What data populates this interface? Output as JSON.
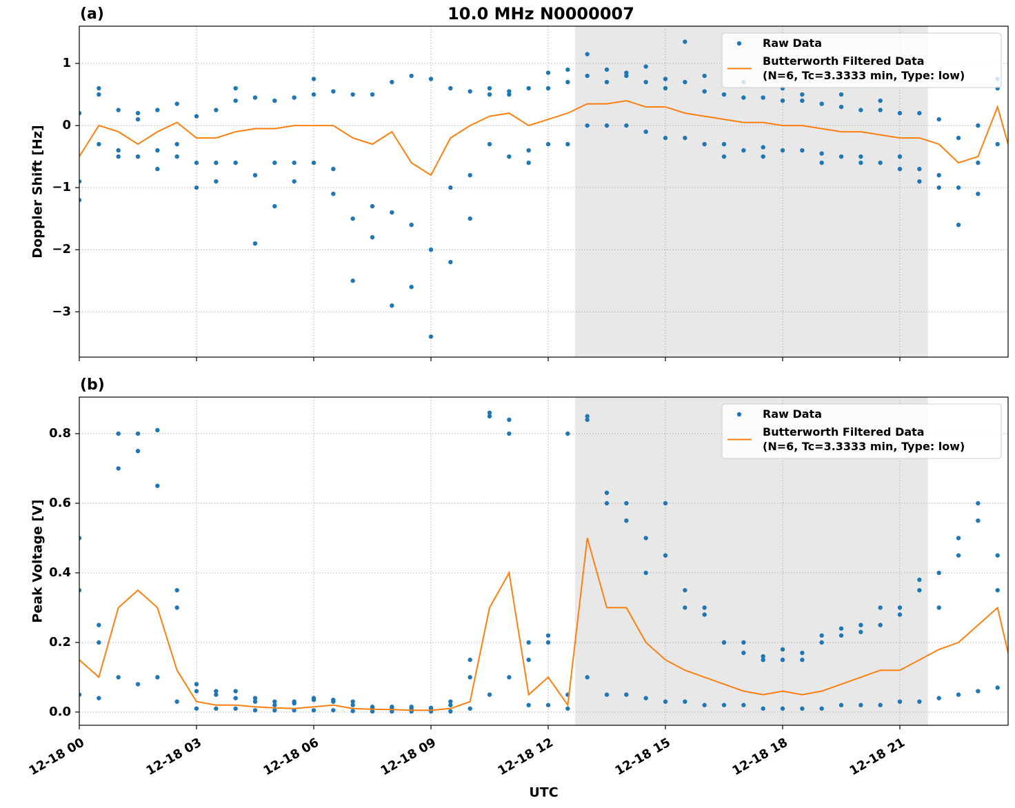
{
  "chart_data": [
    {
      "type": "line",
      "title": "10.0 MHz N0000007",
      "panel_label": "(a)",
      "ylabel": "Doppler Shift [Hz]",
      "xlim": [
        0,
        23.77
      ],
      "xticks": [
        0,
        3,
        6,
        9,
        12,
        15,
        18,
        21
      ],
      "ylim": [
        -3.73,
        1.6
      ],
      "yticks": [
        {
          "value": -3,
          "label": "−3"
        },
        {
          "value": -2,
          "label": "−2"
        },
        {
          "value": -1,
          "label": "−1"
        },
        0,
        1
      ],
      "grid": true,
      "legend": "upper right",
      "shaded_span": [
        12.69,
        21.72
      ],
      "shade_color": "#e8e8e8",
      "series": [
        {
          "name": "Raw Data",
          "color": "#1f77b4",
          "style": "markers",
          "x": [
            0,
            0,
            0,
            0.5,
            0.5,
            0.5,
            1,
            1,
            1,
            1.5,
            1.5,
            1.5,
            2,
            2,
            2,
            2.5,
            2.5,
            2.5,
            3,
            3,
            3,
            3.5,
            3.5,
            3.5,
            4,
            4,
            4,
            4.5,
            4.5,
            4.5,
            5,
            5,
            5,
            5.5,
            5.5,
            5.5,
            6,
            6,
            6,
            6.5,
            6.5,
            6.5,
            7,
            7,
            7,
            7.5,
            7.5,
            7.5,
            8,
            8,
            8,
            8.5,
            8.5,
            8.5,
            9,
            9,
            9,
            9.5,
            9.5,
            9.5,
            10,
            10,
            10,
            10.5,
            10.5,
            10.5,
            11,
            11,
            11,
            11.5,
            11.5,
            11.5,
            12,
            12,
            12,
            12.5,
            12.5,
            12.5,
            13,
            13,
            13,
            13.5,
            13.5,
            13.5,
            14,
            14,
            14,
            14.5,
            14.5,
            14.5,
            15,
            15,
            15,
            15.5,
            15.5,
            15.5,
            16,
            16,
            16,
            16.5,
            16.5,
            16.5,
            17,
            17,
            17,
            17.5,
            17.5,
            17.5,
            18,
            18,
            18,
            18.5,
            18.5,
            18.5,
            19,
            19,
            19,
            19.5,
            19.5,
            19.5,
            20,
            20,
            20,
            20.5,
            20.5,
            20.5,
            21,
            21,
            21,
            21.5,
            21.5,
            21.5,
            22,
            22,
            22,
            22.5,
            22.5,
            22.5,
            23,
            23,
            23,
            23.5,
            23.5,
            23.5
          ],
          "values": [
            0.2,
            -0.9,
            -1.2,
            0.5,
            -0.3,
            0.6,
            0.25,
            -0.4,
            -0.5,
            0.1,
            -0.5,
            0.2,
            0.25,
            -0.4,
            -0.7,
            0.35,
            -0.3,
            -0.5,
            0.15,
            -0.6,
            -1.0,
            0.25,
            -0.6,
            -0.9,
            0.4,
            -0.6,
            0.6,
            0.45,
            -0.8,
            -1.9,
            0.4,
            -0.6,
            -1.3,
            0.45,
            -0.6,
            -0.9,
            0.5,
            -0.6,
            0.75,
            0.55,
            -0.7,
            -1.1,
            0.5,
            -1.5,
            -2.5,
            0.5,
            -1.3,
            -1.8,
            0.7,
            -1.4,
            -2.9,
            0.8,
            -1.6,
            -2.6,
            0.75,
            -2.0,
            -3.4,
            0.6,
            -1.0,
            -2.2,
            0.55,
            -0.8,
            -1.5,
            0.5,
            -0.3,
            0.6,
            0.55,
            -0.5,
            0.5,
            0.6,
            -0.4,
            -0.6,
            0.6,
            -0.3,
            0.85,
            0.7,
            -0.3,
            0.9,
            0.8,
            0.0,
            1.15,
            0.9,
            0.0,
            0.7,
            0.85,
            0.0,
            0.8,
            0.7,
            -0.1,
            0.95,
            0.75,
            -0.2,
            0.6,
            0.7,
            -0.2,
            1.35,
            0.55,
            -0.3,
            0.8,
            0.5,
            -0.3,
            -0.5,
            0.45,
            -0.4,
            0.7,
            0.45,
            -0.35,
            -0.5,
            0.4,
            -0.4,
            0.6,
            0.4,
            -0.4,
            0.5,
            0.35,
            -0.45,
            -0.6,
            0.3,
            -0.5,
            0.5,
            0.25,
            -0.5,
            -0.6,
            0.25,
            -0.6,
            0.4,
            0.2,
            -0.7,
            -0.5,
            0.2,
            -0.7,
            -0.9,
            0.1,
            -0.8,
            -1.0,
            -0.2,
            -1.0,
            -1.6,
            0.0,
            -1.1,
            -0.6,
            0.75,
            -0.3,
            0.6
          ]
        },
        {
          "name": "Butterworth Filtered Data\n(N=6, Tc=3.3333 min, Type: low)",
          "color": "#ff7f0e",
          "style": "line",
          "x": [
            0,
            0.5,
            1,
            1.5,
            2,
            2.5,
            3,
            3.5,
            4,
            4.5,
            5,
            5.5,
            6,
            6.5,
            7,
            7.5,
            8,
            8.5,
            9,
            9.5,
            10,
            10.5,
            11,
            11.5,
            12,
            12.5,
            13,
            13.5,
            14,
            14.5,
            15,
            15.5,
            16,
            16.5,
            17,
            17.5,
            18,
            18.5,
            19,
            19.5,
            20,
            20.5,
            21,
            21.5,
            22,
            22.5,
            23,
            23.5,
            23.77
          ],
          "values": [
            -0.5,
            0.0,
            -0.1,
            -0.3,
            -0.1,
            0.05,
            -0.2,
            -0.2,
            -0.1,
            -0.05,
            -0.05,
            0.0,
            0.0,
            0.0,
            -0.2,
            -0.3,
            -0.1,
            -0.6,
            -0.8,
            -0.2,
            0.0,
            0.15,
            0.2,
            0.0,
            0.1,
            0.2,
            0.35,
            0.35,
            0.4,
            0.3,
            0.3,
            0.2,
            0.15,
            0.1,
            0.05,
            0.05,
            0.0,
            0.0,
            -0.05,
            -0.1,
            -0.1,
            -0.15,
            -0.2,
            -0.2,
            -0.3,
            -0.6,
            -0.5,
            0.3,
            -0.3
          ]
        }
      ]
    },
    {
      "type": "line",
      "panel_label": "(b)",
      "ylabel": "Peak Voltage [V]",
      "xlabel": "UTC",
      "xlim": [
        0,
        23.77
      ],
      "xticks": [
        {
          "value": 0,
          "label": "12-18 00"
        },
        {
          "value": 3,
          "label": "12-18 03"
        },
        {
          "value": 6,
          "label": "12-18 06"
        },
        {
          "value": 9,
          "label": "12-18 09"
        },
        {
          "value": 12,
          "label": "12-18 12"
        },
        {
          "value": 15,
          "label": "12-18 15"
        },
        {
          "value": 18,
          "label": "12-18 18"
        },
        {
          "value": 21,
          "label": "12-18 21"
        }
      ],
      "ylim": [
        -0.038,
        0.905
      ],
      "yticks": [
        {
          "value": 0,
          "label": "0.0"
        },
        0.2,
        0.4,
        0.6,
        0.8
      ],
      "grid": true,
      "legend": "upper right",
      "shaded_span": [
        12.69,
        21.72
      ],
      "shade_color": "#e8e8e8",
      "series": [
        {
          "name": "Raw Data",
          "color": "#1f77b4",
          "style": "markers",
          "x": [
            0,
            0,
            0,
            0.5,
            0.5,
            0.5,
            1,
            1,
            1,
            1.5,
            1.5,
            1.5,
            2,
            2,
            2,
            2.5,
            2.5,
            2.5,
            3,
            3,
            3,
            3.5,
            3.5,
            3.5,
            4,
            4,
            4,
            4.5,
            4.5,
            4.5,
            5,
            5,
            5,
            5.5,
            5.5,
            5.5,
            6,
            6,
            6,
            6.5,
            6.5,
            6.5,
            7,
            7,
            7,
            7.5,
            7.5,
            7.5,
            8,
            8,
            8,
            8.5,
            8.5,
            8.5,
            9,
            9,
            9,
            9.5,
            9.5,
            9.5,
            10,
            10,
            10,
            10.5,
            10.5,
            10.5,
            11,
            11,
            11,
            11.5,
            11.5,
            11.5,
            12,
            12,
            12,
            12.5,
            12.5,
            12.5,
            13,
            13,
            13,
            13.5,
            13.5,
            13.5,
            14,
            14,
            14,
            14.5,
            14.5,
            14.5,
            15,
            15,
            15,
            15.5,
            15.5,
            15.5,
            16,
            16,
            16,
            16.5,
            16.5,
            16.5,
            17,
            17,
            17,
            17.5,
            17.5,
            17.5,
            18,
            18,
            18,
            18.5,
            18.5,
            18.5,
            19,
            19,
            19,
            19.5,
            19.5,
            19.5,
            20,
            20,
            20,
            20.5,
            20.5,
            20.5,
            21,
            21,
            21,
            21.5,
            21.5,
            21.5,
            22,
            22,
            22,
            22.5,
            22.5,
            22.5,
            23,
            23,
            23,
            23.5,
            23.5,
            23.5
          ],
          "values": [
            0.35,
            0.05,
            0.5,
            0.2,
            0.04,
            0.25,
            0.7,
            0.1,
            0.8,
            0.75,
            0.08,
            0.8,
            0.65,
            0.1,
            0.81,
            0.3,
            0.03,
            0.35,
            0.06,
            0.01,
            0.08,
            0.05,
            0.01,
            0.06,
            0.04,
            0.01,
            0.06,
            0.03,
            0.005,
            0.04,
            0.03,
            0.005,
            0.02,
            0.025,
            0.005,
            0.03,
            0.035,
            0.005,
            0.04,
            0.035,
            0.005,
            0.03,
            0.02,
            0.003,
            0.03,
            0.015,
            0.002,
            0.01,
            0.012,
            0.002,
            0.015,
            0.01,
            0.002,
            0.015,
            0.01,
            0.002,
            0.012,
            0.02,
            0.002,
            0.03,
            0.1,
            0.01,
            0.15,
            0.85,
            0.05,
            0.86,
            0.8,
            0.1,
            0.84,
            0.15,
            0.02,
            0.2,
            0.2,
            0.02,
            0.22,
            0.05,
            0.01,
            0.8,
            0.85,
            0.1,
            0.84,
            0.6,
            0.05,
            0.63,
            0.55,
            0.05,
            0.6,
            0.4,
            0.04,
            0.5,
            0.45,
            0.03,
            0.6,
            0.3,
            0.03,
            0.35,
            0.28,
            0.02,
            0.3,
            0.2,
            0.02,
            0.2,
            0.17,
            0.02,
            0.2,
            0.15,
            0.01,
            0.16,
            0.15,
            0.01,
            0.18,
            0.15,
            0.01,
            0.17,
            0.2,
            0.01,
            0.22,
            0.22,
            0.02,
            0.24,
            0.25,
            0.02,
            0.23,
            0.3,
            0.02,
            0.25,
            0.28,
            0.03,
            0.3,
            0.35,
            0.03,
            0.38,
            0.4,
            0.04,
            0.3,
            0.5,
            0.05,
            0.45,
            0.55,
            0.06,
            0.6,
            0.45,
            0.07,
            0.35
          ]
        },
        {
          "name": "Butterworth Filtered Data\n(N=6, Tc=3.3333 min, Type: low)",
          "color": "#ff7f0e",
          "style": "line",
          "x": [
            0,
            0.5,
            1,
            1.5,
            2,
            2.5,
            3,
            3.5,
            4,
            4.5,
            5,
            5.5,
            6,
            6.5,
            7,
            7.5,
            8,
            8.5,
            9,
            9.5,
            10,
            10.5,
            11,
            11.5,
            12,
            12.5,
            13,
            13.5,
            14,
            14.5,
            15,
            15.5,
            16,
            16.5,
            17,
            17.5,
            18,
            18.5,
            19,
            19.5,
            20,
            20.5,
            21,
            21.5,
            22,
            22.5,
            23,
            23.5,
            23.77
          ],
          "values": [
            0.15,
            0.1,
            0.3,
            0.35,
            0.3,
            0.12,
            0.03,
            0.02,
            0.02,
            0.015,
            0.012,
            0.01,
            0.015,
            0.02,
            0.01,
            0.008,
            0.007,
            0.005,
            0.005,
            0.01,
            0.03,
            0.3,
            0.4,
            0.05,
            0.1,
            0.02,
            0.5,
            0.3,
            0.3,
            0.2,
            0.15,
            0.12,
            0.1,
            0.08,
            0.06,
            0.05,
            0.06,
            0.05,
            0.06,
            0.08,
            0.1,
            0.12,
            0.12,
            0.15,
            0.18,
            0.2,
            0.25,
            0.3,
            0.17
          ]
        }
      ]
    }
  ]
}
